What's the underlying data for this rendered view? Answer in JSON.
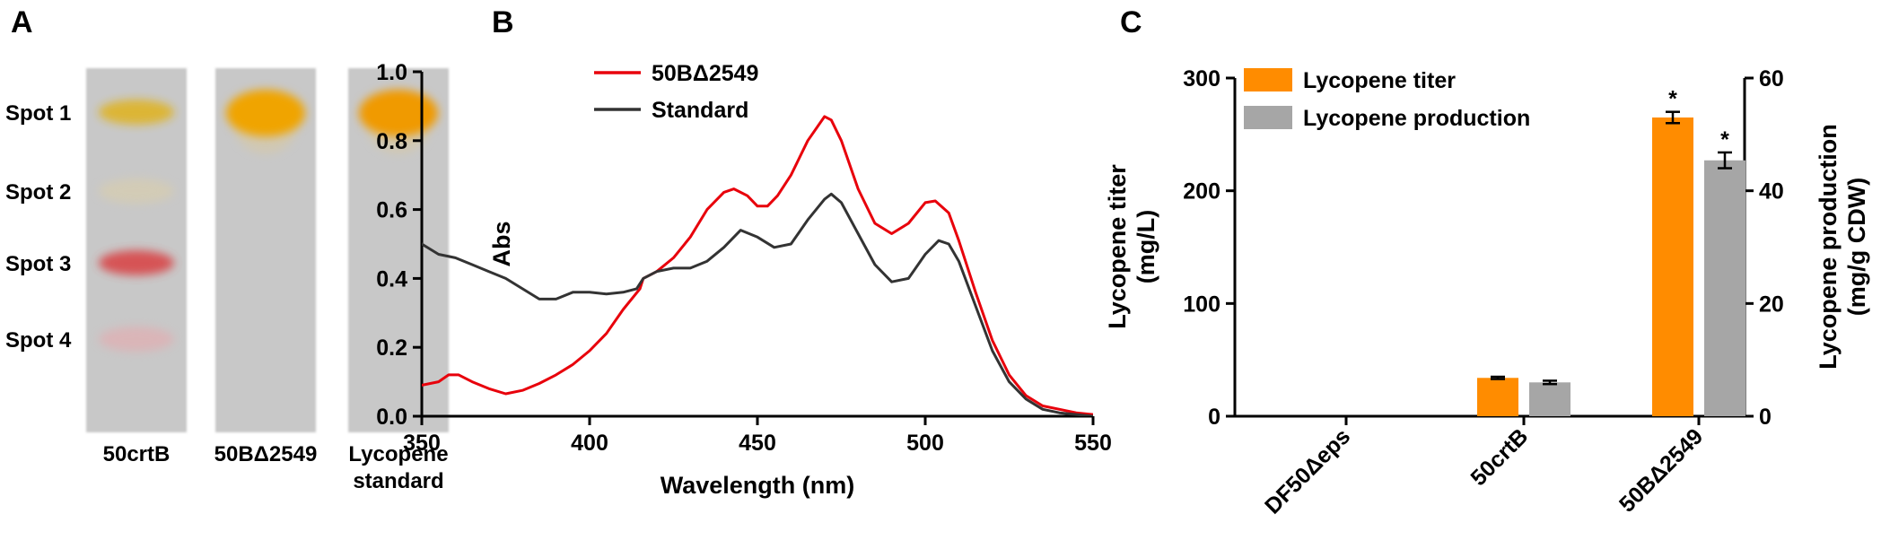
{
  "panels": {
    "a": {
      "letter": "A",
      "spot_labels": [
        "Spot 1",
        "Spot 2",
        "Spot 3",
        "Spot 4"
      ],
      "lanes": [
        {
          "label_lines": [
            "50crtB"
          ],
          "spots": [
            {
              "color": "#e0b21c",
              "strength": 0.85
            },
            {
              "color": "#dccfa8",
              "strength": 0.55
            },
            {
              "color": "#d8474a",
              "strength": 0.9
            },
            {
              "color": "#e6a9ad",
              "strength": 0.6
            }
          ]
        },
        {
          "label_lines": [
            "50BΔ2549"
          ],
          "spots": [
            {
              "color": "#f0a400",
              "strength": 1.0
            }
          ]
        },
        {
          "label_lines": [
            "Lycopene",
            "standard"
          ],
          "spots": [
            {
              "color": "#f09a00",
              "strength": 1.0
            }
          ]
        }
      ],
      "colors": {
        "plate": "#c8c8c8"
      }
    },
    "b": {
      "letter": "B"
    },
    "c": {
      "letter": "C"
    }
  },
  "chart_data": [
    {
      "type": "line",
      "panel": "B",
      "xlabel": "Wavelength (nm)",
      "ylabel": "Abs",
      "xlim": [
        350,
        550
      ],
      "ylim": [
        0.0,
        1.0
      ],
      "xticks": [
        350,
        400,
        450,
        500,
        550
      ],
      "yticks": [
        0.0,
        0.2,
        0.4,
        0.6,
        0.8,
        1.0
      ],
      "ytick_labels": [
        "0.0",
        "0.2",
        "0.4",
        "0.6",
        "0.8",
        "1.0"
      ],
      "legend_position": "top-left",
      "series": [
        {
          "name": "50BΔ2549",
          "color": "#e8000b",
          "x": [
            350,
            355,
            358,
            361,
            365,
            370,
            375,
            380,
            385,
            390,
            395,
            400,
            405,
            410,
            415,
            416,
            420,
            425,
            430,
            435,
            440,
            443,
            447,
            450,
            453,
            456,
            460,
            465,
            470,
            472,
            475,
            480,
            485,
            490,
            495,
            500,
            503,
            507,
            510,
            515,
            520,
            525,
            530,
            535,
            540,
            545,
            550
          ],
          "y": [
            0.09,
            0.1,
            0.12,
            0.12,
            0.1,
            0.08,
            0.065,
            0.075,
            0.095,
            0.12,
            0.15,
            0.19,
            0.24,
            0.31,
            0.37,
            0.4,
            0.42,
            0.46,
            0.52,
            0.6,
            0.65,
            0.66,
            0.64,
            0.61,
            0.61,
            0.64,
            0.7,
            0.8,
            0.87,
            0.86,
            0.8,
            0.66,
            0.56,
            0.53,
            0.56,
            0.62,
            0.625,
            0.59,
            0.51,
            0.36,
            0.22,
            0.12,
            0.06,
            0.03,
            0.02,
            0.01,
            0.005
          ]
        },
        {
          "name": "Standard",
          "color": "#333333",
          "x": [
            350,
            355,
            360,
            365,
            370,
            375,
            380,
            385,
            390,
            395,
            400,
            405,
            410,
            414,
            416,
            420,
            425,
            430,
            435,
            440,
            445,
            450,
            455,
            460,
            465,
            470,
            472,
            475,
            480,
            485,
            490,
            495,
            500,
            504,
            507,
            510,
            515,
            520,
            525,
            530,
            535,
            540,
            545,
            550
          ],
          "y": [
            0.5,
            0.47,
            0.46,
            0.44,
            0.42,
            0.4,
            0.37,
            0.34,
            0.34,
            0.36,
            0.36,
            0.355,
            0.36,
            0.37,
            0.4,
            0.42,
            0.43,
            0.43,
            0.45,
            0.49,
            0.54,
            0.52,
            0.49,
            0.5,
            0.57,
            0.63,
            0.645,
            0.62,
            0.53,
            0.44,
            0.39,
            0.4,
            0.47,
            0.51,
            0.5,
            0.45,
            0.32,
            0.19,
            0.1,
            0.05,
            0.02,
            0.01,
            0.005,
            0.0
          ]
        }
      ]
    },
    {
      "type": "bar",
      "panel": "C",
      "categories": [
        "DF50Δeps",
        "50crtB",
        "50BΔ2549"
      ],
      "ylabel_left": [
        "Lycopene titer",
        "(mg/L)"
      ],
      "ylabel_right": [
        "Lycopene production",
        "(mg/g CDW)"
      ],
      "ylim_left": [
        0,
        300
      ],
      "ylim_right": [
        0,
        60
      ],
      "yticks_left": [
        0,
        100,
        200,
        300
      ],
      "yticks_right": [
        0,
        20,
        40,
        60
      ],
      "legend_position": "top-left",
      "series": [
        {
          "name": "Lycopene titer",
          "color": "#ff8c00",
          "axis": "left",
          "values": [
            0,
            34,
            265
          ],
          "errors": [
            0,
            1,
            5
          ],
          "annotations": [
            "",
            "",
            "*"
          ]
        },
        {
          "name": "Lycopene production",
          "color": "#a6a6a6",
          "axis": "right",
          "values": [
            0,
            6,
            45.4
          ],
          "errors": [
            0,
            0.3,
            1.4
          ],
          "annotations": [
            "",
            "",
            "*"
          ]
        }
      ]
    }
  ]
}
